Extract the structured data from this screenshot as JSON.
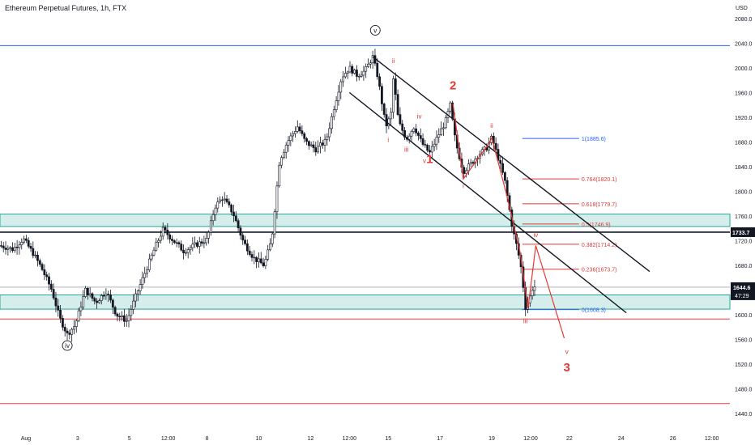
{
  "header": {
    "title": "Ethereum Perpetual Futures, 1h, FTX"
  },
  "chart_data": {
    "type": "candlestick",
    "symbol": "Ethereum Perpetual Futures",
    "interval": "1h",
    "exchange": "FTX",
    "currency_label": "USD",
    "y_ticks": [
      1440,
      1480,
      1520,
      1560,
      1600,
      1640,
      1680,
      1720,
      1760,
      1800,
      1840,
      1880,
      1920,
      1960,
      2000,
      2040,
      2080
    ],
    "y_tick_labels": [
      "1440.0",
      "1480.0",
      "1520.0",
      "1560.0",
      "1600.0",
      "1640.0",
      "1680.0",
      "1720.0",
      "1760.0",
      "1800.0",
      "1840.0",
      "1880.0",
      "1920.0",
      "1960.0",
      "2000.0",
      "2040.0",
      "2080.0"
    ],
    "x_ticks": [
      "Aug",
      "3",
      "5",
      "12:00",
      "8",
      "10",
      "12",
      "12:00",
      "15",
      "17",
      "19",
      "12:00",
      "22",
      "24",
      "26",
      "12:00"
    ],
    "x_tick_days": [
      1,
      3,
      5,
      6.5,
      8,
      10,
      12,
      13.5,
      15,
      17,
      19,
      20.5,
      22,
      24,
      26,
      27.5
    ],
    "ylim": [
      1415,
      2110
    ],
    "xlim": [
      0,
      28.2
    ],
    "price_path": [
      [
        0.0,
        1712
      ],
      [
        0.5,
        1706
      ],
      [
        0.9,
        1723
      ],
      [
        1.3,
        1698
      ],
      [
        1.6,
        1676
      ],
      [
        2.0,
        1640
      ],
      [
        2.3,
        1595
      ],
      [
        2.6,
        1568
      ],
      [
        2.9,
        1583
      ],
      [
        3.3,
        1640
      ],
      [
        3.7,
        1620
      ],
      [
        4.1,
        1638
      ],
      [
        4.5,
        1600
      ],
      [
        4.9,
        1590
      ],
      [
        5.2,
        1625
      ],
      [
        5.6,
        1668
      ],
      [
        6.0,
        1710
      ],
      [
        6.3,
        1738
      ],
      [
        6.7,
        1720
      ],
      [
        7.1,
        1703
      ],
      [
        7.5,
        1712
      ],
      [
        8.0,
        1722
      ],
      [
        8.3,
        1775
      ],
      [
        8.6,
        1790
      ],
      [
        9.0,
        1765
      ],
      [
        9.4,
        1718
      ],
      [
        9.8,
        1692
      ],
      [
        10.2,
        1680
      ],
      [
        10.5,
        1722
      ],
      [
        10.8,
        1850
      ],
      [
        11.1,
        1880
      ],
      [
        11.5,
        1905
      ],
      [
        11.8,
        1880
      ],
      [
        12.2,
        1868
      ],
      [
        12.6,
        1882
      ],
      [
        12.9,
        1935
      ],
      [
        13.2,
        1985
      ],
      [
        13.5,
        2000
      ],
      [
        13.8,
        1988
      ],
      [
        14.1,
        1995
      ],
      [
        14.4,
        2018
      ],
      [
        14.6,
        1985
      ],
      [
        14.9,
        1905
      ],
      [
        15.1,
        1922
      ],
      [
        15.2,
        1985
      ],
      [
        15.4,
        1912
      ],
      [
        15.7,
        1885
      ],
      [
        16.0,
        1905
      ],
      [
        16.3,
        1878
      ],
      [
        16.6,
        1862
      ],
      [
        16.9,
        1888
      ],
      [
        17.2,
        1912
      ],
      [
        17.4,
        1940
      ],
      [
        17.6,
        1880
      ],
      [
        17.9,
        1832
      ],
      [
        18.2,
        1845
      ],
      [
        18.5,
        1860
      ],
      [
        18.8,
        1870
      ],
      [
        19.0,
        1887
      ],
      [
        19.2,
        1860
      ],
      [
        19.5,
        1818
      ],
      [
        19.8,
        1740
      ],
      [
        20.0,
        1705
      ],
      [
        20.15,
        1672
      ],
      [
        20.3,
        1612
      ],
      [
        20.45,
        1625
      ],
      [
        20.6,
        1647
      ],
      [
        20.7,
        1644
      ]
    ],
    "price_range_days": [
      0,
      20.7
    ],
    "horizontal_levels": [
      {
        "price": 2036,
        "role": "resistance-line"
      },
      {
        "price": 1644.6,
        "role": "last-price-line"
      },
      {
        "price": 1593,
        "role": "support-line"
      },
      {
        "price": 1456,
        "role": "support-line"
      }
    ],
    "zones": [
      {
        "from": 1743,
        "to": 1763
      },
      {
        "from": 1609,
        "to": 1632
      }
    ],
    "marked_level": {
      "price": 1733.7,
      "label": "1733.7"
    },
    "last_price": {
      "price": 1644.6,
      "label": "1644.6",
      "countdown": "47:29"
    },
    "fib_levels": [
      {
        "price": 1885.6,
        "label": "1(1885.6)",
        "color": "#2962ff"
      },
      {
        "price": 1820.1,
        "label": "0.764(1820.1)",
        "color": "#e53935"
      },
      {
        "price": 1779.7,
        "label": "0.618(1779.7)",
        "color": "#e53935"
      },
      {
        "price": 1746.9,
        "label": "0.5(1746.9)",
        "color": "#e53935"
      },
      {
        "price": 1714.2,
        "label": "0.382(1714.2)",
        "color": "#e53935"
      },
      {
        "price": 1673.7,
        "label": "0.236(1673.7)",
        "color": "#e53935"
      },
      {
        "price": 1608.3,
        "label": "0(1608.3)",
        "color": "#2962ff"
      }
    ],
    "fib_day_range": [
      19.4,
      20.6
    ],
    "channel_lines": [
      {
        "from": [
          14.4,
          2018
        ],
        "to": [
          25.1,
          1670
        ]
      },
      {
        "from": [
          13.5,
          1960
        ],
        "to": [
          24.2,
          1603
        ]
      }
    ],
    "projection_path": [
      [
        20.4,
        1610
      ],
      [
        20.7,
        1712
      ],
      [
        21.8,
        1562
      ]
    ],
    "wave_red_path": [
      [
        17.5,
        1942
      ],
      [
        17.9,
        1820
      ],
      [
        18.9,
        1878
      ],
      [
        19.0,
        1887
      ],
      [
        19.6,
        1790
      ],
      [
        20.1,
        1700
      ],
      [
        20.4,
        1612
      ]
    ],
    "wave_labels": [
      {
        "text": "v",
        "day": 14.5,
        "price": 2057,
        "circled": true,
        "color": "#131722"
      },
      {
        "text": "iv",
        "day": 2.6,
        "price": 1546,
        "circled": true,
        "color": "#131722"
      },
      {
        "text": "ii",
        "day": 15.2,
        "price": 2008,
        "circled": false,
        "color": "#e53935"
      },
      {
        "text": "i",
        "day": 15.0,
        "price": 1880,
        "circled": false,
        "color": "#e53935"
      },
      {
        "text": "iii",
        "day": 15.7,
        "price": 1864,
        "circled": false,
        "color": "#e53935"
      },
      {
        "text": "iv",
        "day": 16.2,
        "price": 1918,
        "circled": false,
        "color": "#e53935"
      },
      {
        "text": "v",
        "day": 16.4,
        "price": 1846,
        "circled": false,
        "color": "#e53935"
      },
      {
        "text": "1",
        "day": 16.6,
        "price": 1846,
        "circled": false,
        "color": "#e53935",
        "big": true
      },
      {
        "text": "2",
        "day": 17.5,
        "price": 1965,
        "circled": false,
        "color": "#e53935",
        "big": true
      },
      {
        "text": "i",
        "day": 17.9,
        "price": 1805,
        "circled": false,
        "color": "#e53935"
      },
      {
        "text": "ii",
        "day": 19.0,
        "price": 1903,
        "circled": false,
        "color": "#e53935"
      },
      {
        "text": "iii",
        "day": 20.3,
        "price": 1586,
        "circled": false,
        "color": "#e53935"
      },
      {
        "text": "iv",
        "day": 20.7,
        "price": 1726,
        "circled": false,
        "color": "#e53935"
      },
      {
        "text": "v",
        "day": 21.9,
        "price": 1536,
        "circled": false,
        "color": "#e53935"
      },
      {
        "text": "3",
        "day": 21.9,
        "price": 1508,
        "circled": false,
        "color": "#e53935",
        "big": true
      }
    ]
  }
}
